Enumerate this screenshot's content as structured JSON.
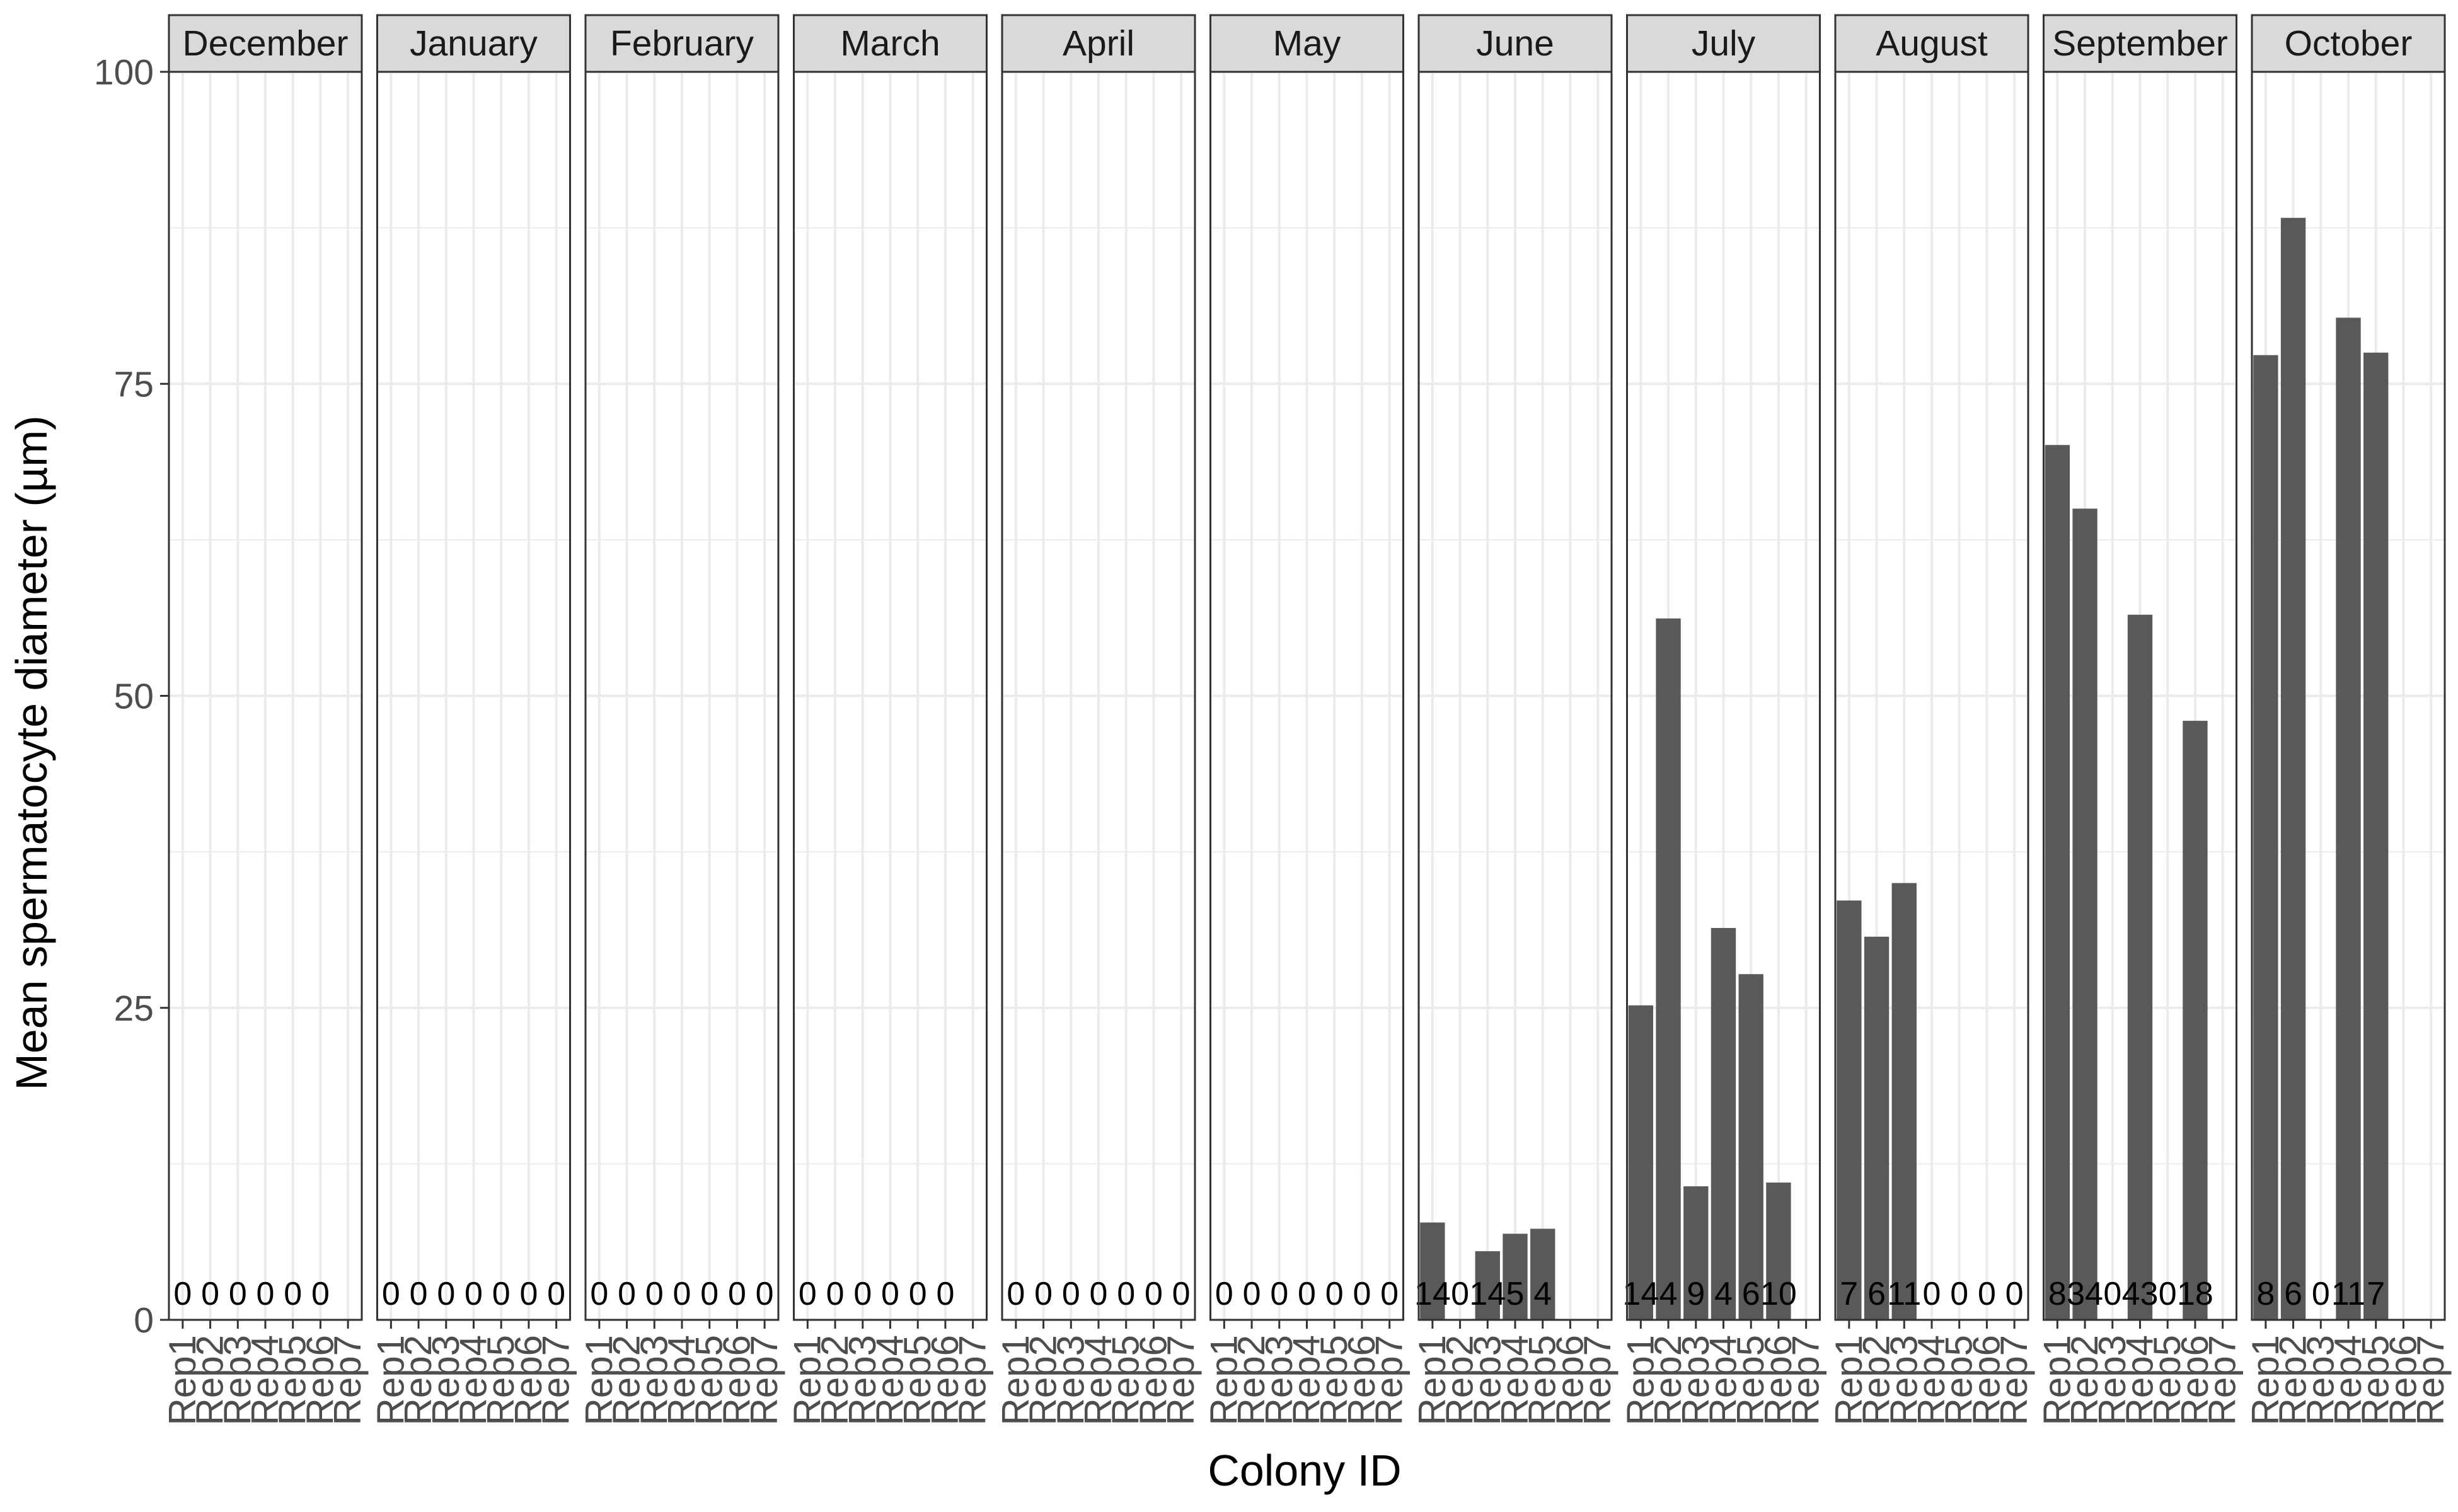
{
  "chart_data": {
    "type": "bar",
    "xlabel": "Colony ID",
    "ylabel": "Mean spermatocyte diameter (µm)",
    "ylim": [
      0,
      100
    ],
    "yticks": [
      0,
      25,
      50,
      75,
      100
    ],
    "grid": true,
    "bar_color": "#595959",
    "facets": [
      {
        "name": "December",
        "categories": [
          "Rep1",
          "Rep2",
          "Rep3",
          "Rep4",
          "Rep5",
          "Rep6",
          "Rep7"
        ],
        "values": [
          0,
          0,
          0,
          0,
          0,
          0,
          null
        ],
        "counts": [
          "0",
          "0",
          "0",
          "0",
          "0",
          "0",
          ""
        ]
      },
      {
        "name": "January",
        "categories": [
          "Rep1",
          "Rep2",
          "Rep3",
          "Rep4",
          "Rep5",
          "Rep6",
          "Rep7"
        ],
        "values": [
          0,
          0,
          0,
          0,
          0,
          0,
          0
        ],
        "counts": [
          "0",
          "0",
          "0",
          "0",
          "0",
          "0",
          "0"
        ]
      },
      {
        "name": "February",
        "categories": [
          "Rep1",
          "Rep2",
          "Rep3",
          "Rep4",
          "Rep5",
          "Rep6",
          "Rep7"
        ],
        "values": [
          0,
          0,
          0,
          0,
          0,
          0,
          0
        ],
        "counts": [
          "0",
          "0",
          "0",
          "0",
          "0",
          "0",
          "0"
        ]
      },
      {
        "name": "March",
        "categories": [
          "Rep1",
          "Rep2",
          "Rep3",
          "Rep4",
          "Rep5",
          "Rep6",
          "Rep7"
        ],
        "values": [
          0,
          0,
          0,
          0,
          0,
          0,
          null
        ],
        "counts": [
          "0",
          "0",
          "0",
          "0",
          "0",
          "0",
          ""
        ]
      },
      {
        "name": "April",
        "categories": [
          "Rep1",
          "Rep2",
          "Rep3",
          "Rep4",
          "Rep5",
          "Rep6",
          "Rep7"
        ],
        "values": [
          0,
          0,
          0,
          0,
          0,
          0,
          0
        ],
        "counts": [
          "0",
          "0",
          "0",
          "0",
          "0",
          "0",
          "0"
        ]
      },
      {
        "name": "May",
        "categories": [
          "Rep1",
          "Rep2",
          "Rep3",
          "Rep4",
          "Rep5",
          "Rep6",
          "Rep7"
        ],
        "values": [
          0,
          0,
          0,
          0,
          0,
          0,
          0
        ],
        "counts": [
          "0",
          "0",
          "0",
          "0",
          "0",
          "0",
          "0"
        ]
      },
      {
        "name": "June",
        "categories": [
          "Rep1",
          "Rep2",
          "Rep3",
          "Rep4",
          "Rep5",
          "Rep6",
          "Rep7"
        ],
        "values": [
          7.8,
          0,
          5.5,
          6.9,
          7.3,
          null,
          null
        ],
        "counts": [
          "14",
          "0",
          "14",
          "5",
          "4",
          "",
          ""
        ]
      },
      {
        "name": "July",
        "categories": [
          "Rep1",
          "Rep2",
          "Rep3",
          "Rep4",
          "Rep5",
          "Rep6",
          "Rep7"
        ],
        "values": [
          25.2,
          56.2,
          10.7,
          31.4,
          27.7,
          11.0,
          null
        ],
        "counts": [
          "14",
          "4",
          "9",
          "4",
          "6",
          "10",
          ""
        ]
      },
      {
        "name": "August",
        "categories": [
          "Rep1",
          "Rep2",
          "Rep3",
          "Rep4",
          "Rep5",
          "Rep6",
          "Rep7"
        ],
        "values": [
          33.6,
          30.7,
          35.0,
          0,
          0,
          0,
          0
        ],
        "counts": [
          "7",
          "6",
          "11",
          "0",
          "0",
          "0",
          "0"
        ]
      },
      {
        "name": "September",
        "categories": [
          "Rep1",
          "Rep2",
          "Rep3",
          "Rep4",
          "Rep5",
          "Rep6",
          "Rep7"
        ],
        "values": [
          70.1,
          65.0,
          0,
          56.5,
          0,
          48.0,
          null
        ],
        "counts": [
          "8",
          "34",
          "0",
          "43",
          "0",
          "18",
          ""
        ]
      },
      {
        "name": "October",
        "categories": [
          "Rep1",
          "Rep2",
          "Rep3",
          "Rep4",
          "Rep5",
          "Rep6",
          "Rep7"
        ],
        "values": [
          77.3,
          88.3,
          0,
          80.3,
          77.5,
          null,
          null
        ],
        "counts": [
          "8",
          "6",
          "0",
          "11",
          "7",
          "",
          ""
        ]
      }
    ]
  }
}
